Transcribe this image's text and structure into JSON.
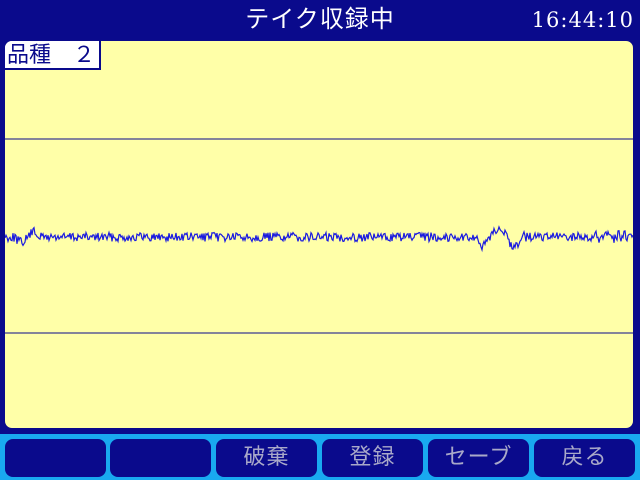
{
  "header": {
    "title": "テイク収録中",
    "clock": "16:44:10"
  },
  "panel": {
    "product_label": "品種　２"
  },
  "footer": {
    "keys": [
      {
        "label": ""
      },
      {
        "label": ""
      },
      {
        "label": "破棄"
      },
      {
        "label": "登録"
      },
      {
        "label": "セーブ"
      },
      {
        "label": "戻る"
      }
    ]
  },
  "colors": {
    "frame": "#0a0a8c",
    "plot_background": "#ffffa8",
    "footer_bar": "#19a9f0",
    "key_text": "#a9a9c9",
    "waveform": "#1a1ae0"
  }
}
